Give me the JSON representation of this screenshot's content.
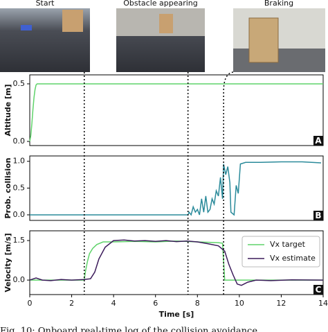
{
  "images": [
    {
      "title": "Start"
    },
    {
      "title": "Obstacle appearing"
    },
    {
      "title": "Braking"
    }
  ],
  "events": [
    2.6,
    7.55,
    9.25
  ],
  "caption": "Fig. 10: Onboard real-time log of the collision avoidance",
  "chart_data": [
    {
      "type": "line",
      "ylabel": "Altitude [m]",
      "panel": "A",
      "xlim": [
        0,
        14
      ],
      "ylim": [
        -0.036,
        0.578
      ],
      "yticks": [
        {
          "value": 0,
          "label": "0.0"
        },
        {
          "value": 0.5,
          "label": "0.5"
        }
      ],
      "series": [
        {
          "name": "Altitude",
          "color": "#5fd36a",
          "x": [
            0,
            0.05,
            0.1,
            0.15,
            0.2,
            0.25,
            0.3,
            0.35,
            14
          ],
          "values": [
            0,
            0.05,
            0.15,
            0.27,
            0.38,
            0.45,
            0.49,
            0.5,
            0.5
          ]
        }
      ]
    },
    {
      "type": "line",
      "ylabel": "Prob. collision",
      "panel": "B",
      "xlim": [
        0,
        14
      ],
      "ylim": [
        -0.104,
        1.1
      ],
      "yticks": [
        {
          "value": 0,
          "label": "0.0"
        },
        {
          "value": 0.5,
          "label": "0.5"
        },
        {
          "value": 1,
          "label": "1.0"
        }
      ],
      "series": [
        {
          "name": "Prob. collision",
          "color": "#2a8a9a",
          "x": [
            0,
            7.55,
            7.6,
            7.7,
            7.8,
            7.9,
            8.0,
            8.1,
            8.2,
            8.3,
            8.4,
            8.5,
            8.6,
            8.7,
            8.8,
            8.9,
            9.0,
            9.1,
            9.2,
            9.25,
            9.35,
            9.45,
            9.55,
            9.6,
            9.75,
            9.85,
            9.95,
            10.05,
            10.3,
            11,
            12,
            13,
            13.9
          ],
          "values": [
            0,
            0,
            0.05,
            0,
            0.15,
            0.05,
            0.1,
            0,
            0.3,
            0.05,
            0.35,
            0.05,
            0.1,
            0.3,
            0.2,
            0.45,
            0.35,
            0.7,
            0.3,
            0.95,
            0.75,
            0.9,
            0.6,
            0.05,
            0,
            0.55,
            0.4,
            0.95,
            0.98,
            0.98,
            0.99,
            0.99,
            0.97
          ]
        }
      ]
    },
    {
      "type": "line",
      "ylabel": "Velocity [m/s]",
      "panel": "C",
      "xlabel": "Time [s]",
      "xlim": [
        0,
        14
      ],
      "ylim": [
        -0.55,
        1.87
      ],
      "xticks": [
        0,
        2,
        4,
        6,
        8,
        10,
        12,
        14
      ],
      "yticks": [
        {
          "value": 0,
          "label": "0.0"
        },
        {
          "value": 1.5,
          "label": "1.5"
        }
      ],
      "legend": "upper right",
      "series": [
        {
          "name": "Vx target",
          "color": "#5fd36a",
          "x": [
            0,
            2.6,
            2.65,
            2.75,
            2.85,
            3.0,
            3.2,
            3.5,
            4.0,
            5.0,
            6.0,
            7.0,
            8.0,
            9.0,
            9.2,
            9.3,
            14
          ],
          "values": [
            0,
            0,
            0.3,
            0.7,
            1.0,
            1.2,
            1.35,
            1.45,
            1.45,
            1.47,
            1.45,
            1.48,
            1.45,
            1.42,
            1.4,
            0,
            0
          ]
        },
        {
          "name": "Vx estimate",
          "color": "#3b1a5a",
          "x": [
            0,
            0.3,
            0.6,
            1.0,
            1.5,
            2.0,
            2.6,
            2.9,
            3.1,
            3.3,
            3.6,
            4.0,
            4.5,
            5.0,
            5.5,
            6.0,
            6.5,
            7.0,
            7.5,
            8.0,
            8.5,
            9.0,
            9.3,
            9.5,
            9.7,
            9.9,
            10.1,
            10.4,
            10.8,
            11.5,
            12.5,
            14
          ],
          "values": [
            0,
            0.08,
            0,
            -0.02,
            0.02,
            0,
            0.02,
            0.05,
            0.3,
            0.8,
            1.25,
            1.5,
            1.52,
            1.48,
            1.5,
            1.47,
            1.5,
            1.46,
            1.48,
            1.45,
            1.38,
            1.3,
            1.1,
            0.6,
            0.2,
            -0.15,
            -0.2,
            -0.08,
            0,
            -0.02,
            0.01,
            0
          ]
        }
      ]
    }
  ]
}
